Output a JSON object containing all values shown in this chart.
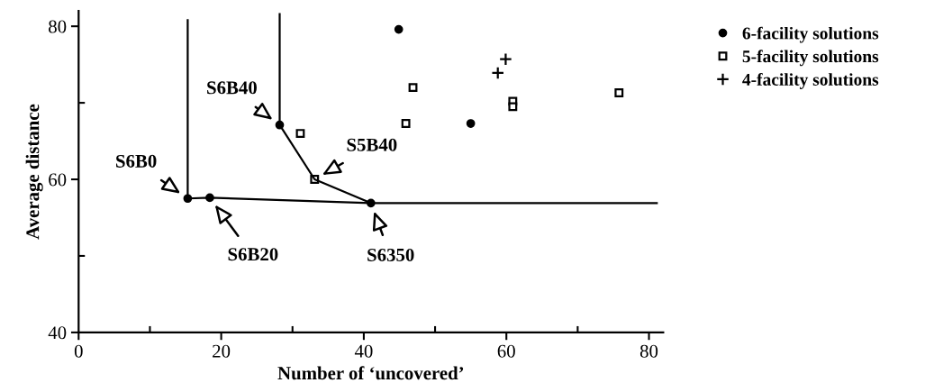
{
  "chart_data": {
    "type": "scatter",
    "xlabel": "Number of ‘uncovered’",
    "ylabel": "Average distance",
    "xlim": [
      0,
      82
    ],
    "ylim": [
      40,
      82
    ],
    "xticks": [
      0,
      20,
      40,
      60,
      80
    ],
    "yticks": [
      40,
      60,
      80
    ],
    "grid": false,
    "legend": "top right",
    "series": [
      {
        "name": "6-facility solutions",
        "color": "#000000",
        "marker": "circle",
        "x": [
          15.3,
          18.4,
          28.2,
          41.0,
          44.9,
          55.0
        ],
        "values": [
          57.5,
          57.6,
          67.1,
          56.9,
          79.6,
          67.3
        ]
      },
      {
        "name": "5-facility solutions",
        "color": "#000000",
        "marker": "square",
        "x": [
          31.1,
          33.1,
          45.9,
          46.9,
          60.9,
          60.9,
          75.8
        ],
        "values": [
          66.0,
          60.0,
          67.3,
          72.0,
          70.2,
          69.5,
          71.3
        ]
      },
      {
        "name": "4-facility solutions",
        "color": "#000000",
        "marker": "cross",
        "x": [
          58.8,
          59.9
        ],
        "values": [
          73.9,
          75.7
        ]
      },
      {
        "type": "line",
        "color": "#000000",
        "marker": "none",
        "x": [
          15.3,
          15.3,
          18.4,
          41.0,
          81.1
        ],
        "values": [
          80.8,
          57.5,
          57.6,
          56.9,
          56.9
        ]
      },
      {
        "type": "line",
        "color": "#000000",
        "marker": "none",
        "x": [
          28.2,
          28.2,
          33.1,
          41.0
        ],
        "values": [
          81.6,
          67.1,
          60.0,
          56.9
        ]
      }
    ],
    "annotations": [
      {
        "text": "S6B0",
        "x": 15.3,
        "y": 57.5
      },
      {
        "text": "S6B20",
        "x": 18.4,
        "y": 57.6
      },
      {
        "text": "S6B40",
        "x": 28.2,
        "y": 67.1
      },
      {
        "text": "S5B40",
        "x": 33.1,
        "y": 60.0
      },
      {
        "text": "S6350",
        "x": 41.0,
        "y": 56.9
      }
    ]
  }
}
